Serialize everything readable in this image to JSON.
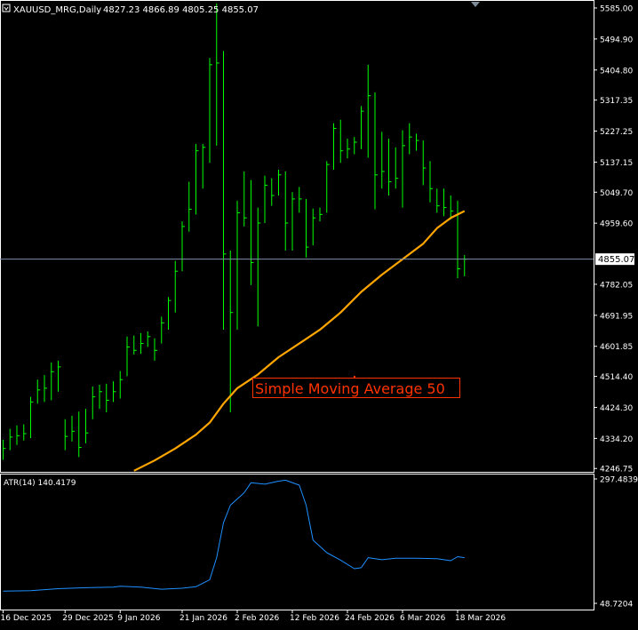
{
  "header": {
    "symbol": "XAUUSD_MRG,Daily",
    "ohlc": "4827.23 4866.89 4805.25 4855.07"
  },
  "colors": {
    "background": "#000000",
    "bars": "#00ff00",
    "sma": "#ffa500",
    "atr": "#1e90ff",
    "frame": "#ffffff",
    "text": "#ffffff",
    "annotation": "#ff3300",
    "price_line": "#8090a8",
    "price_tag_bg": "#ffffff",
    "price_tag_fg": "#000000"
  },
  "annotation": {
    "text": "Simple Moving Average 50"
  },
  "current_price": {
    "label": "4855.07",
    "value": 4855.07
  },
  "chart_data": [
    {
      "type": "ohlc",
      "price_axis_labels": [
        "5585.00",
        "5494.90",
        "5404.80",
        "5317.35",
        "5227.25",
        "5137.15",
        "5049.70",
        "4959.60",
        "4782.05",
        "4691.95",
        "4601.85",
        "4514.40",
        "4424.30",
        "4334.20",
        "4246.75"
      ],
      "ylim": [
        4237,
        5603
      ],
      "x_labels": [
        {
          "label": "16 Dec 2025",
          "bar": 0
        },
        {
          "label": "29 Dec 2025",
          "bar": 9
        },
        {
          "label": "9 Jan 2026",
          "bar": 17
        },
        {
          "label": "21 Jan 2026",
          "bar": 26
        },
        {
          "label": "2 Feb 2026",
          "bar": 34
        },
        {
          "label": "12 Feb 2026",
          "bar": 42
        },
        {
          "label": "24 Feb 2026",
          "bar": 50
        },
        {
          "label": "6 Mar 2026",
          "bar": 58
        },
        {
          "label": "18 Mar 2026",
          "bar": 66
        }
      ],
      "bars": [
        {
          "h": 4330,
          "l": 4272,
          "c": 4305
        },
        {
          "h": 4362,
          "l": 4300,
          "c": 4338
        },
        {
          "h": 4372,
          "l": 4315,
          "c": 4342
        },
        {
          "h": 4375,
          "l": 4328,
          "c": 4348
        },
        {
          "h": 4455,
          "l": 4335,
          "c": 4440
        },
        {
          "h": 4505,
          "l": 4435,
          "c": 4475
        },
        {
          "h": 4518,
          "l": 4440,
          "c": 4480
        },
        {
          "h": 4555,
          "l": 4445,
          "c": 4528
        },
        {
          "h": 4560,
          "l": 4470,
          "c": 4542
        },
        {
          "h": 4390,
          "l": 4300,
          "c": 4340
        },
        {
          "h": 4400,
          "l": 4325,
          "c": 4355
        },
        {
          "h": 4412,
          "l": 4280,
          "c": 4308
        },
        {
          "h": 4420,
          "l": 4320,
          "c": 4350
        },
        {
          "h": 4485,
          "l": 4390,
          "c": 4455
        },
        {
          "h": 4490,
          "l": 4420,
          "c": 4470
        },
        {
          "h": 4493,
          "l": 4410,
          "c": 4445
        },
        {
          "h": 4500,
          "l": 4440,
          "c": 4470
        },
        {
          "h": 4530,
          "l": 4450,
          "c": 4505
        },
        {
          "h": 4630,
          "l": 4515,
          "c": 4600
        },
        {
          "h": 4633,
          "l": 4578,
          "c": 4590
        },
        {
          "h": 4640,
          "l": 4580,
          "c": 4610
        },
        {
          "h": 4645,
          "l": 4600,
          "c": 4630
        },
        {
          "h": 4625,
          "l": 4560,
          "c": 4590
        },
        {
          "h": 4688,
          "l": 4610,
          "c": 4670
        },
        {
          "h": 4745,
          "l": 4650,
          "c": 4735
        },
        {
          "h": 4850,
          "l": 4700,
          "c": 4820
        },
        {
          "h": 4965,
          "l": 4820,
          "c": 4950
        },
        {
          "h": 5080,
          "l": 4935,
          "c": 5000
        },
        {
          "h": 5190,
          "l": 4985,
          "c": 5170
        },
        {
          "h": 5190,
          "l": 5060,
          "c": 5180
        },
        {
          "h": 5440,
          "l": 5135,
          "c": 5420
        },
        {
          "h": 5598,
          "l": 5185,
          "c": 5425
        },
        {
          "h": 5460,
          "l": 4650,
          "c": 4870
        },
        {
          "h": 4880,
          "l": 4410,
          "c": 4700
        },
        {
          "h": 5025,
          "l": 4650,
          "c": 4990
        },
        {
          "h": 5110,
          "l": 4950,
          "c": 4975
        },
        {
          "h": 5085,
          "l": 4780,
          "c": 4845
        },
        {
          "h": 5005,
          "l": 4660,
          "c": 4960
        },
        {
          "h": 5098,
          "l": 4960,
          "c": 5070
        },
        {
          "h": 5090,
          "l": 5010,
          "c": 5040
        },
        {
          "h": 5115,
          "l": 5040,
          "c": 5100
        },
        {
          "h": 5110,
          "l": 4880,
          "c": 4960
        },
        {
          "h": 5050,
          "l": 4880,
          "c": 5030
        },
        {
          "h": 5065,
          "l": 4990,
          "c": 5030
        },
        {
          "h": 5030,
          "l": 4860,
          "c": 4890
        },
        {
          "h": 5002,
          "l": 4895,
          "c": 4975
        },
        {
          "h": 5005,
          "l": 4965,
          "c": 4985
        },
        {
          "h": 5140,
          "l": 4990,
          "c": 5130
        },
        {
          "h": 5250,
          "l": 5115,
          "c": 5235
        },
        {
          "h": 5260,
          "l": 5135,
          "c": 5170
        },
        {
          "h": 5205,
          "l": 5148,
          "c": 5175
        },
        {
          "h": 5210,
          "l": 5160,
          "c": 5195
        },
        {
          "h": 5300,
          "l": 5175,
          "c": 5285
        },
        {
          "h": 5420,
          "l": 5150,
          "c": 5330
        },
        {
          "h": 5340,
          "l": 5000,
          "c": 5100
        },
        {
          "h": 5225,
          "l": 5060,
          "c": 5110
        },
        {
          "h": 5205,
          "l": 5040,
          "c": 5080
        },
        {
          "h": 5180,
          "l": 5060,
          "c": 5090
        },
        {
          "h": 5230,
          "l": 5005,
          "c": 5185
        },
        {
          "h": 5250,
          "l": 5160,
          "c": 5210
        },
        {
          "h": 5220,
          "l": 5170,
          "c": 5200
        },
        {
          "h": 5200,
          "l": 5070,
          "c": 5120
        },
        {
          "h": 5140,
          "l": 5020,
          "c": 5060
        },
        {
          "h": 5060,
          "l": 4990,
          "c": 5010
        },
        {
          "h": 5060,
          "l": 4980,
          "c": 5005
        },
        {
          "h": 5040,
          "l": 4970,
          "c": 4995
        },
        {
          "h": 5025,
          "l": 4800,
          "c": 4827
        },
        {
          "h": 4866.89,
          "l": 4805.25,
          "c": 4855.07
        }
      ],
      "sma50": [
        {
          "bar": 19,
          "v": 4240
        },
        {
          "bar": 22,
          "v": 4270
        },
        {
          "bar": 25,
          "v": 4305
        },
        {
          "bar": 28,
          "v": 4345
        },
        {
          "bar": 30,
          "v": 4380
        },
        {
          "bar": 32,
          "v": 4435
        },
        {
          "bar": 34,
          "v": 4480
        },
        {
          "bar": 37,
          "v": 4520
        },
        {
          "bar": 40,
          "v": 4570
        },
        {
          "bar": 43,
          "v": 4610
        },
        {
          "bar": 46,
          "v": 4650
        },
        {
          "bar": 49,
          "v": 4700
        },
        {
          "bar": 52,
          "v": 4760
        },
        {
          "bar": 55,
          "v": 4810
        },
        {
          "bar": 58,
          "v": 4855
        },
        {
          "bar": 61,
          "v": 4900
        },
        {
          "bar": 63,
          "v": 4945
        },
        {
          "bar": 65,
          "v": 4975
        },
        {
          "bar": 67,
          "v": 4995
        }
      ]
    },
    {
      "type": "line",
      "title": "ATR(14) 140.4179",
      "name": "ATR(14)",
      "value": 140.4179,
      "axis_labels": [
        "297.4839",
        "48.7204"
      ],
      "ylim": [
        48.7204,
        297.4839
      ],
      "points": [
        {
          "bar": 0,
          "v": 73
        },
        {
          "bar": 4,
          "v": 74
        },
        {
          "bar": 8,
          "v": 78
        },
        {
          "bar": 12,
          "v": 80
        },
        {
          "bar": 16,
          "v": 81
        },
        {
          "bar": 17,
          "v": 83
        },
        {
          "bar": 20,
          "v": 81
        },
        {
          "bar": 23,
          "v": 77
        },
        {
          "bar": 26,
          "v": 79
        },
        {
          "bar": 28,
          "v": 82
        },
        {
          "bar": 30,
          "v": 96
        },
        {
          "bar": 31,
          "v": 140
        },
        {
          "bar": 32,
          "v": 210
        },
        {
          "bar": 33,
          "v": 245
        },
        {
          "bar": 35,
          "v": 270
        },
        {
          "bar": 36,
          "v": 290
        },
        {
          "bar": 38,
          "v": 287
        },
        {
          "bar": 40,
          "v": 293
        },
        {
          "bar": 41,
          "v": 295
        },
        {
          "bar": 43,
          "v": 285
        },
        {
          "bar": 44,
          "v": 245
        },
        {
          "bar": 45,
          "v": 175
        },
        {
          "bar": 47,
          "v": 150
        },
        {
          "bar": 49,
          "v": 135
        },
        {
          "bar": 51,
          "v": 118
        },
        {
          "bar": 52,
          "v": 120
        },
        {
          "bar": 53,
          "v": 140
        },
        {
          "bar": 55,
          "v": 136
        },
        {
          "bar": 57,
          "v": 139
        },
        {
          "bar": 60,
          "v": 139
        },
        {
          "bar": 63,
          "v": 138
        },
        {
          "bar": 65,
          "v": 134
        },
        {
          "bar": 66,
          "v": 142
        },
        {
          "bar": 67,
          "v": 140
        }
      ]
    }
  ]
}
